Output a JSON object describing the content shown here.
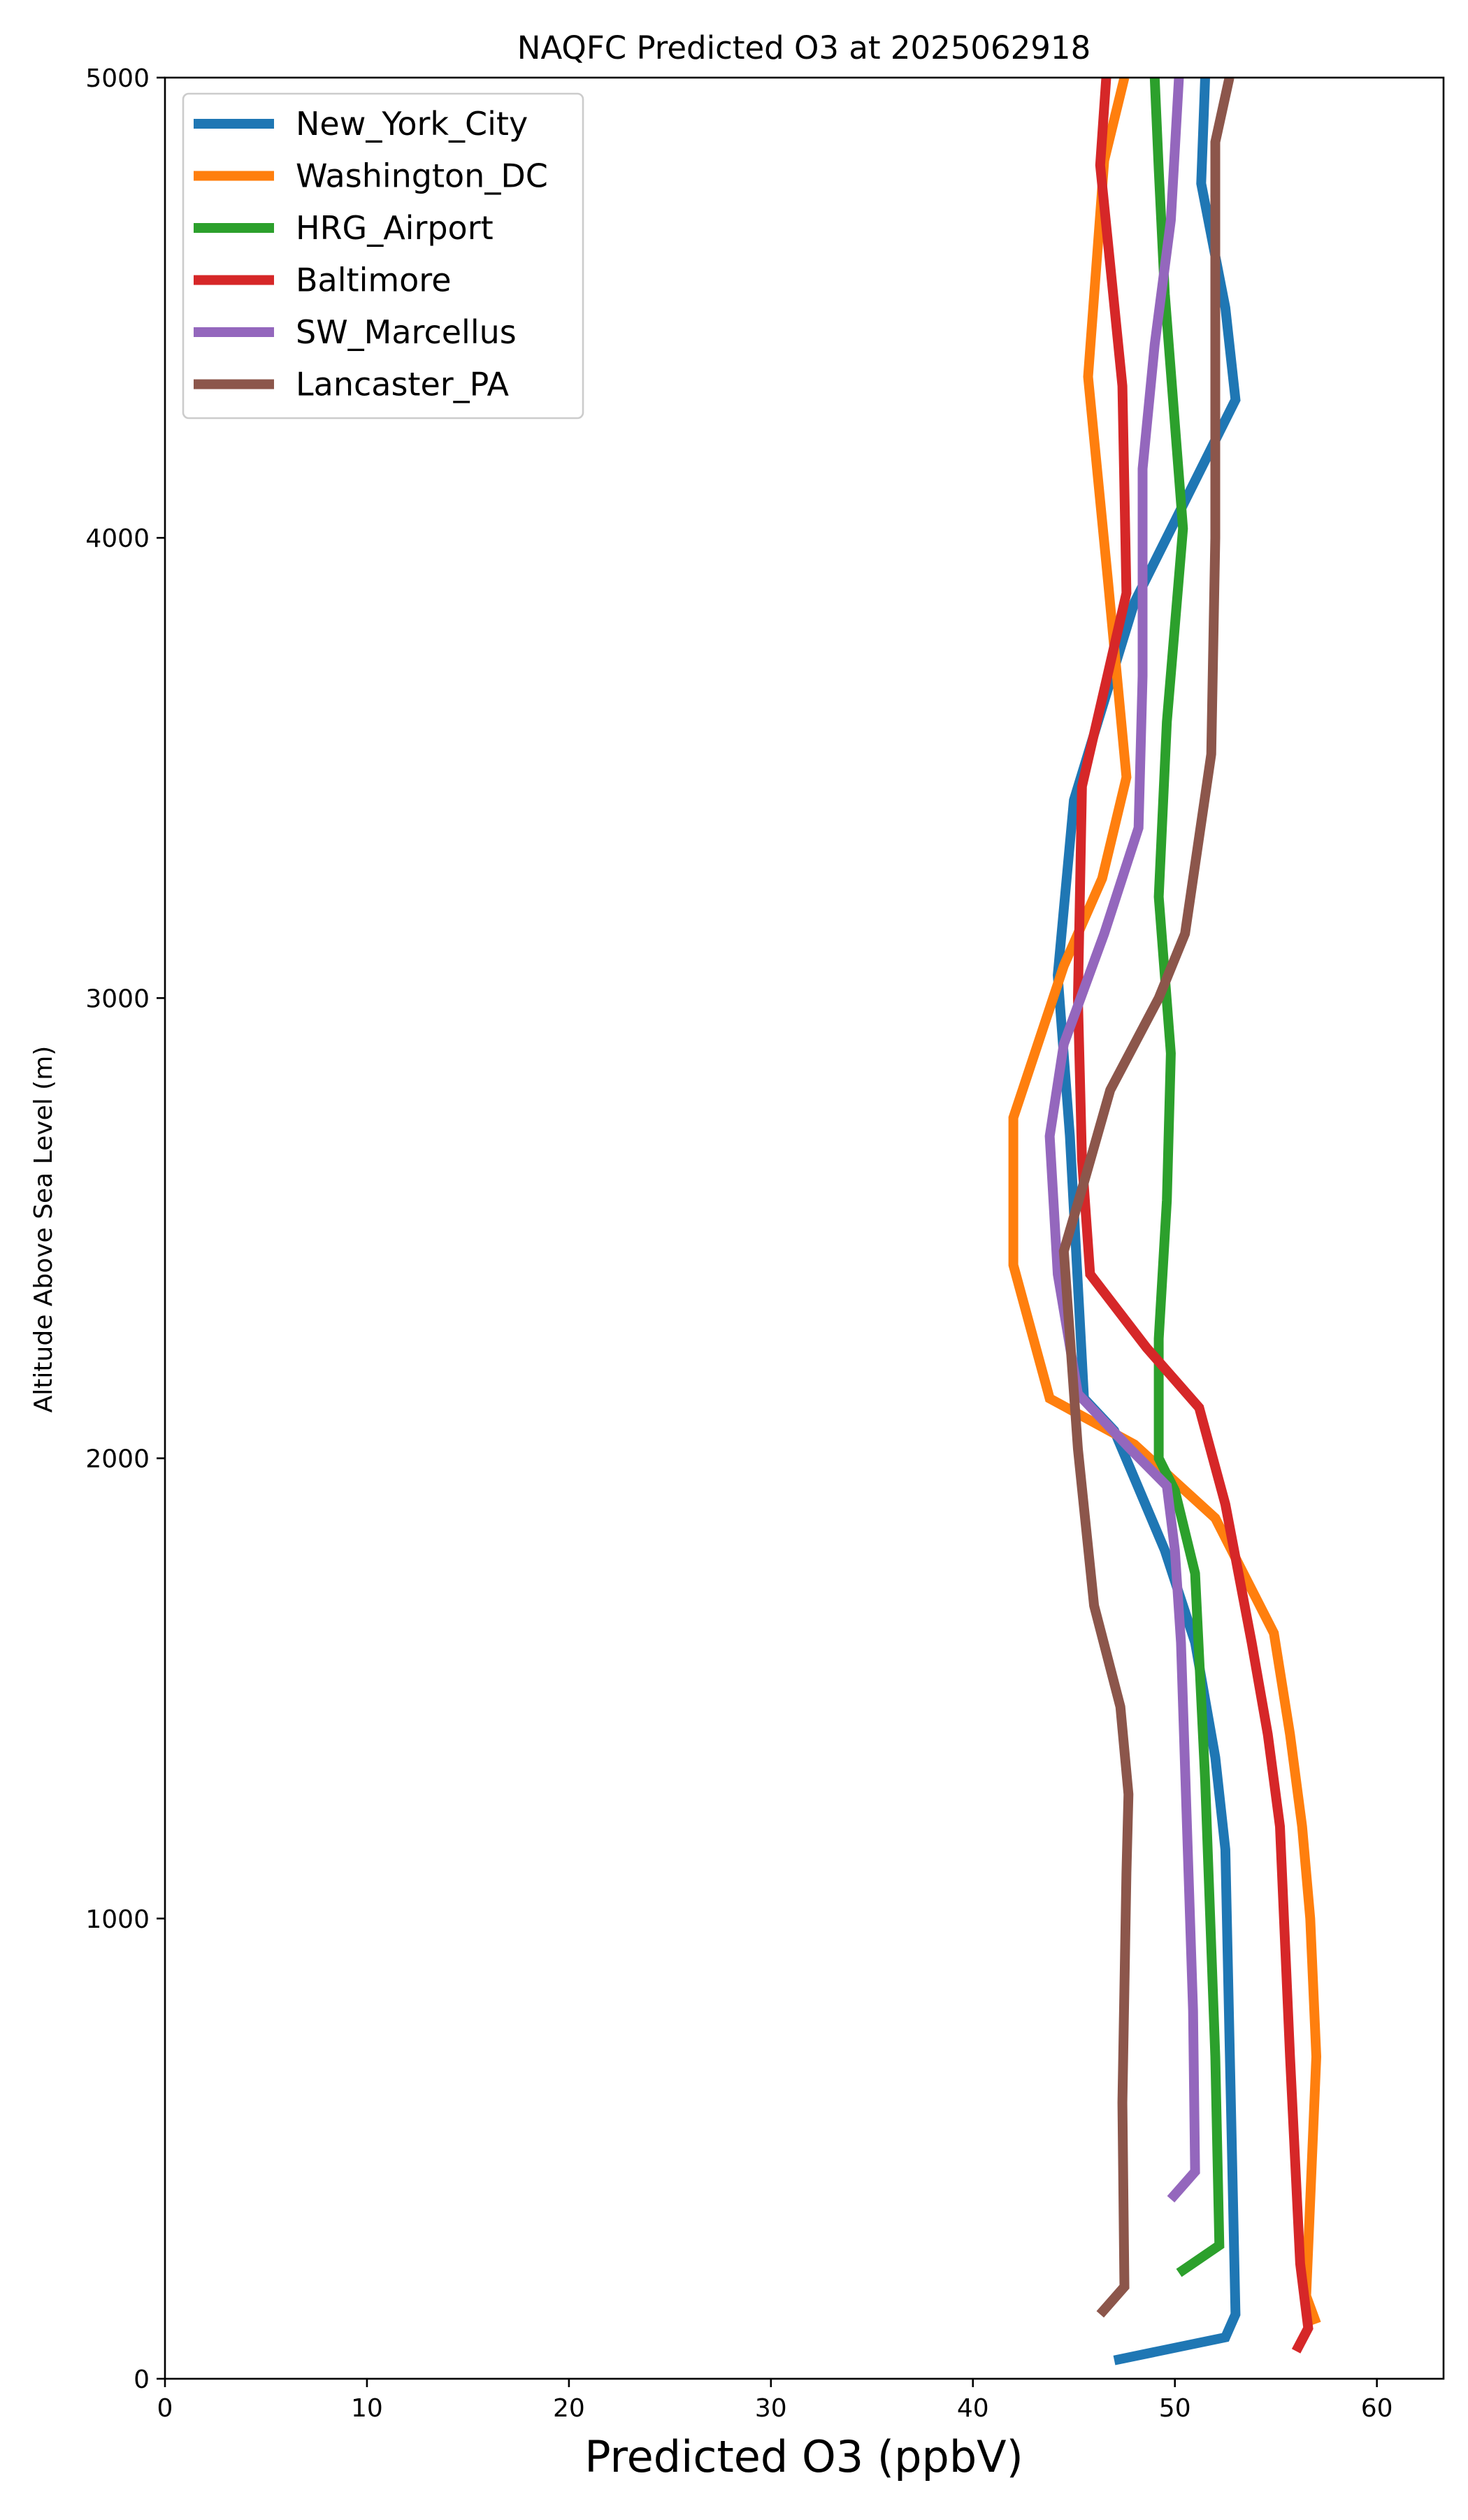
{
  "chart_data": {
    "type": "line",
    "title": "NAQFC Predicted O3 at 2025062918",
    "xlabel": "Predicted O3 (ppbV)",
    "ylabel": "Altitude Above Sea Level (m)",
    "xlim": [
      0,
      63.3
    ],
    "ylim": [
      0,
      5000
    ],
    "xticks": [
      0,
      10,
      20,
      30,
      40,
      50,
      60
    ],
    "yticks": [
      0,
      1000,
      2000,
      3000,
      4000,
      5000
    ],
    "grid": false,
    "legend_position": "upper-left",
    "series": [
      {
        "name": "New_York_City",
        "color": "#1f77b4",
        "points": [
          [
            47.0,
            40
          ],
          [
            52.5,
            90
          ],
          [
            53.0,
            140
          ],
          [
            52.5,
            1150
          ],
          [
            52.0,
            1350
          ],
          [
            51.0,
            1600
          ],
          [
            49.5,
            1800
          ],
          [
            47.0,
            2060
          ],
          [
            45.5,
            2130
          ],
          [
            44.8,
            2700
          ],
          [
            44.2,
            3050
          ],
          [
            45.0,
            3430
          ],
          [
            48.0,
            3860
          ],
          [
            53.0,
            4300
          ],
          [
            52.5,
            4500
          ],
          [
            51.3,
            4770
          ],
          [
            51.5,
            5000
          ]
        ]
      },
      {
        "name": "Washington_DC",
        "color": "#ff7f0e",
        "points": [
          [
            57.0,
            120
          ],
          [
            56.5,
            180
          ],
          [
            57.0,
            700
          ],
          [
            56.7,
            1000
          ],
          [
            56.3,
            1200
          ],
          [
            55.7,
            1400
          ],
          [
            54.9,
            1620
          ],
          [
            52.0,
            1870
          ],
          [
            48.0,
            2030
          ],
          [
            43.8,
            2130
          ],
          [
            42.0,
            2420
          ],
          [
            42.0,
            2740
          ],
          [
            44.5,
            3070
          ],
          [
            46.4,
            3260
          ],
          [
            47.6,
            3480
          ],
          [
            46.7,
            3900
          ],
          [
            45.7,
            4350
          ],
          [
            46.5,
            4820
          ],
          [
            47.5,
            5000
          ]
        ]
      },
      {
        "name": "HRG_Airport",
        "color": "#2ca02c",
        "points": [
          [
            50.2,
            230
          ],
          [
            52.2,
            290
          ],
          [
            52.0,
            700
          ],
          [
            51.5,
            1300
          ],
          [
            51.0,
            1750
          ],
          [
            50.0,
            1930
          ],
          [
            49.2,
            2000
          ],
          [
            49.2,
            2260
          ],
          [
            49.6,
            2560
          ],
          [
            49.8,
            2880
          ],
          [
            49.2,
            3220
          ],
          [
            49.6,
            3600
          ],
          [
            50.4,
            4020
          ],
          [
            49.5,
            4530
          ],
          [
            49.2,
            4800
          ],
          [
            49.0,
            5000
          ]
        ]
      },
      {
        "name": "Baltimore",
        "color": "#d62728",
        "points": [
          [
            56.0,
            60
          ],
          [
            56.6,
            110
          ],
          [
            56.2,
            250
          ],
          [
            55.7,
            700
          ],
          [
            55.2,
            1200
          ],
          [
            54.6,
            1400
          ],
          [
            53.8,
            1600
          ],
          [
            52.5,
            1900
          ],
          [
            51.2,
            2110
          ],
          [
            48.6,
            2240
          ],
          [
            45.8,
            2400
          ],
          [
            45.4,
            2650
          ],
          [
            45.2,
            3000
          ],
          [
            45.4,
            3460
          ],
          [
            47.6,
            3880
          ],
          [
            47.4,
            4330
          ],
          [
            46.3,
            4810
          ],
          [
            46.6,
            5000
          ]
        ]
      },
      {
        "name": "SW_Marcellus",
        "color": "#9467bd",
        "points": [
          [
            49.8,
            390
          ],
          [
            51.0,
            450
          ],
          [
            50.9,
            800
          ],
          [
            50.6,
            1200
          ],
          [
            50.3,
            1600
          ],
          [
            50.0,
            1800
          ],
          [
            49.6,
            1940
          ],
          [
            47.8,
            2020
          ],
          [
            45.2,
            2140
          ],
          [
            44.2,
            2400
          ],
          [
            43.8,
            2700
          ],
          [
            44.5,
            2900
          ],
          [
            46.5,
            3140
          ],
          [
            48.2,
            3370
          ],
          [
            48.4,
            3700
          ],
          [
            48.4,
            4150
          ],
          [
            49.0,
            4420
          ],
          [
            49.8,
            4690
          ],
          [
            50.2,
            5000
          ]
        ]
      },
      {
        "name": "Lancaster_PA",
        "color": "#8c564b",
        "points": [
          [
            46.3,
            140
          ],
          [
            47.5,
            200
          ],
          [
            47.4,
            600
          ],
          [
            47.6,
            1100
          ],
          [
            47.7,
            1270
          ],
          [
            47.3,
            1460
          ],
          [
            46.0,
            1680
          ],
          [
            45.2,
            2020
          ],
          [
            44.5,
            2450
          ],
          [
            45.5,
            2600
          ],
          [
            46.8,
            2800
          ],
          [
            49.2,
            3000
          ],
          [
            50.5,
            3140
          ],
          [
            51.8,
            3530
          ],
          [
            52.0,
            4000
          ],
          [
            52.0,
            4500
          ],
          [
            52.0,
            4860
          ],
          [
            52.7,
            5000
          ]
        ]
      }
    ]
  }
}
